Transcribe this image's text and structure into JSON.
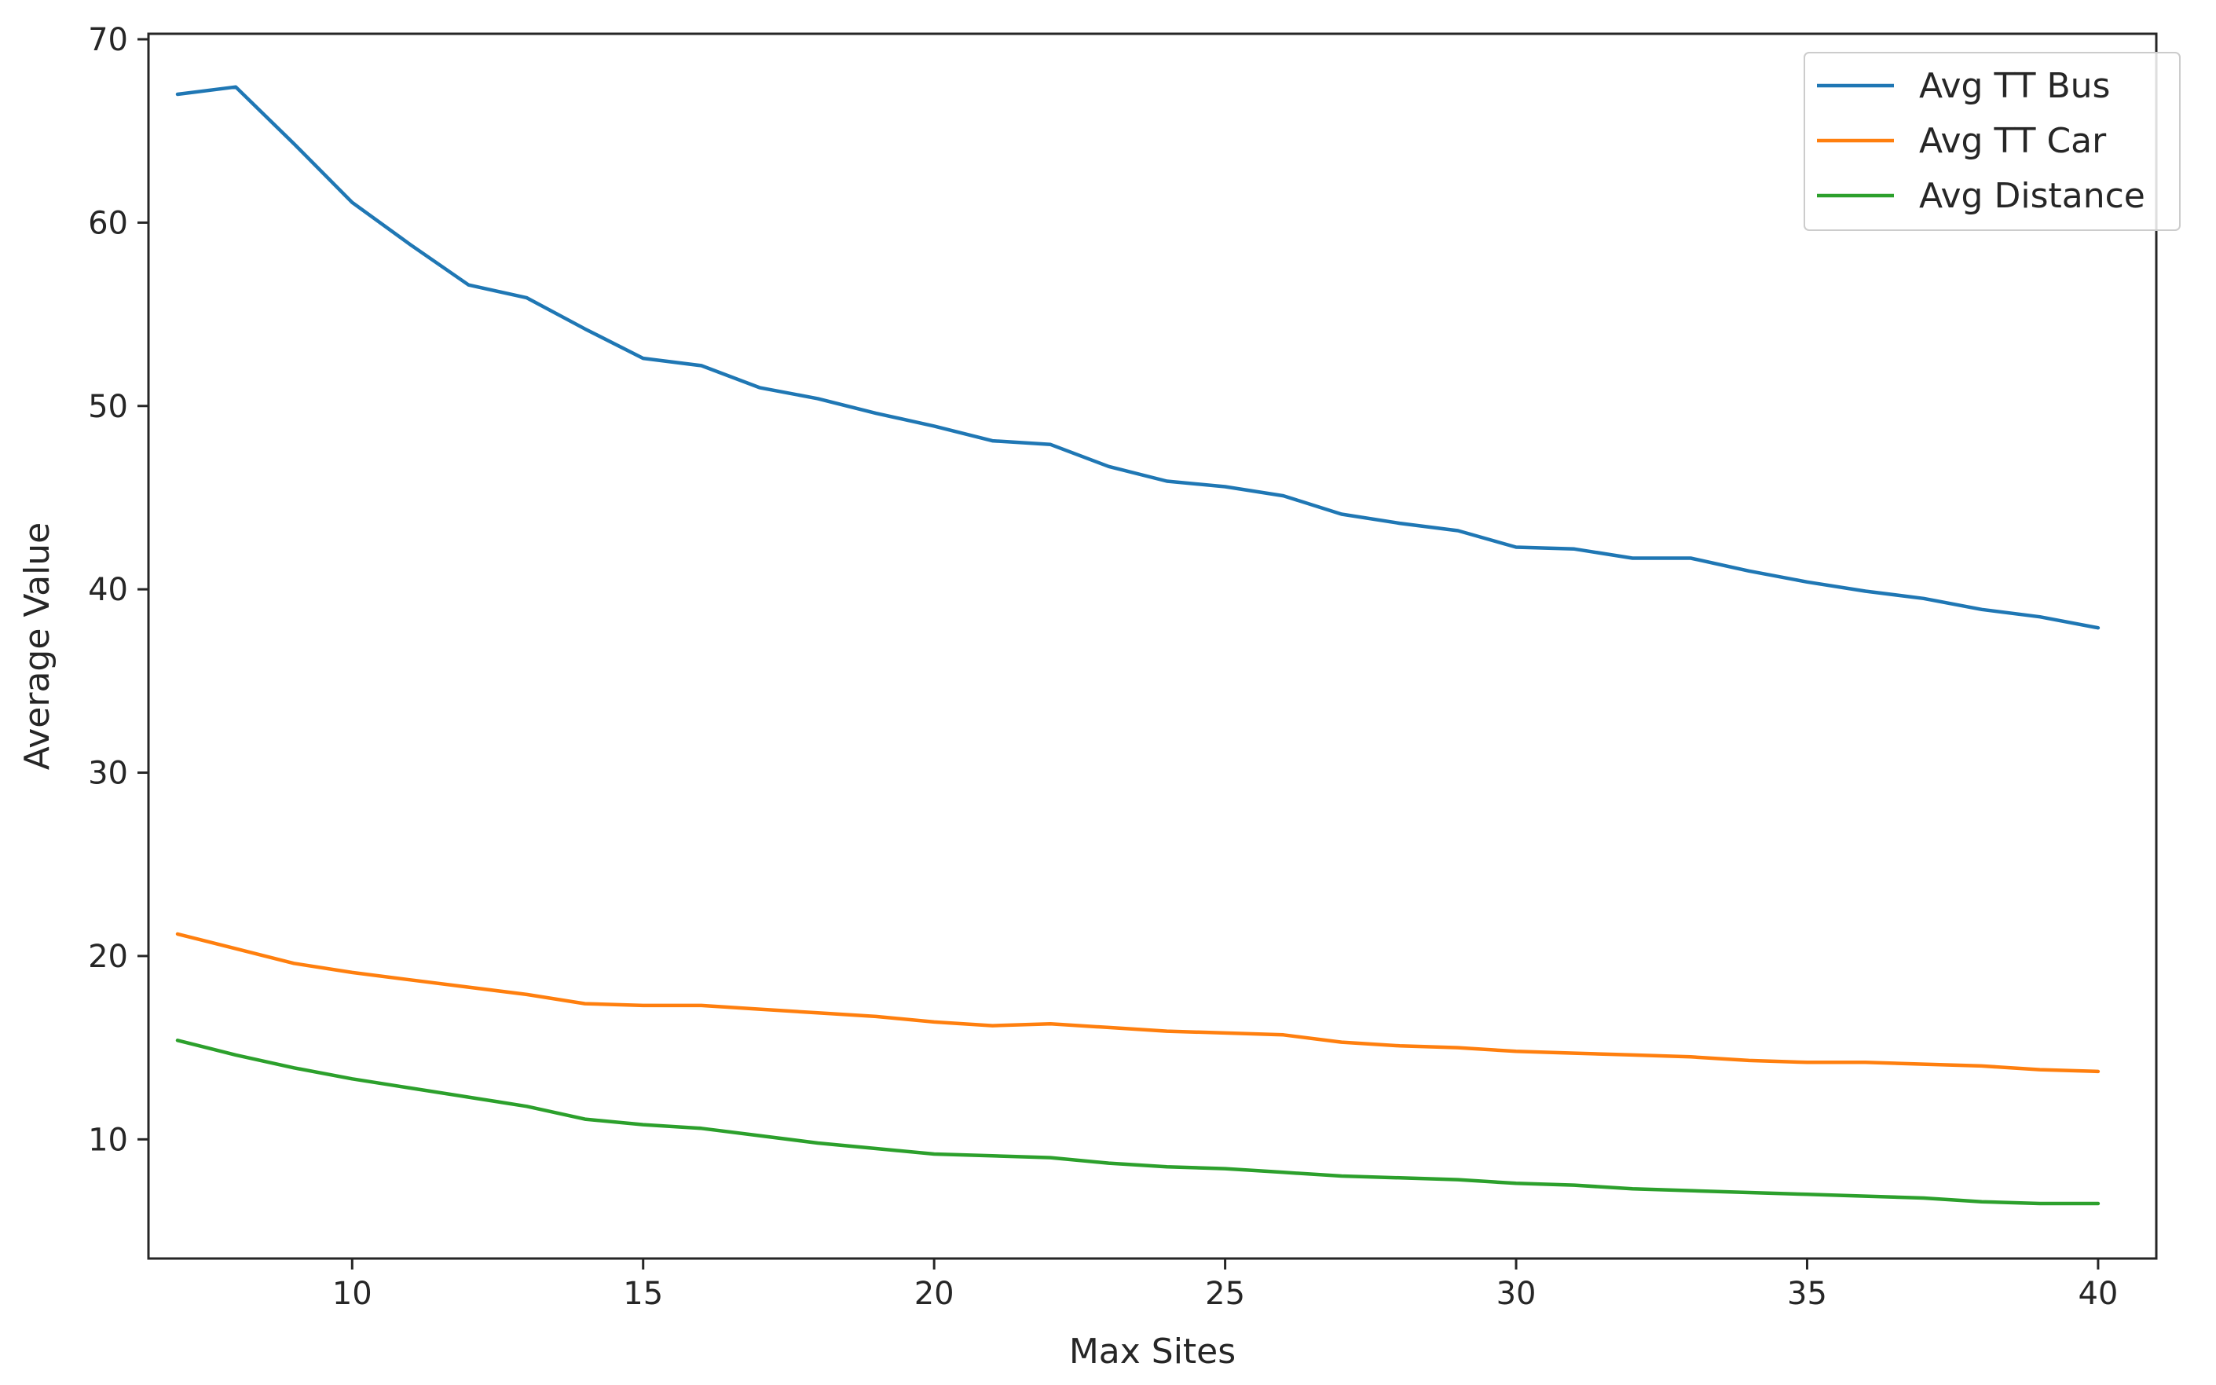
{
  "chart_data": {
    "type": "line",
    "title": "",
    "xlabel": "Max Sites",
    "ylabel": "Average Value",
    "xlim": [
      6.5,
      41
    ],
    "ylim": [
      3.5,
      70.3
    ],
    "xticks": [
      10,
      15,
      20,
      25,
      30,
      35,
      40
    ],
    "yticks": [
      10,
      20,
      30,
      40,
      50,
      60,
      70
    ],
    "grid": false,
    "legend": "top-right",
    "x": [
      7,
      8,
      9,
      10,
      11,
      12,
      13,
      14,
      15,
      16,
      17,
      18,
      19,
      20,
      21,
      22,
      23,
      24,
      25,
      26,
      27,
      28,
      29,
      30,
      31,
      32,
      33,
      34,
      35,
      36,
      37,
      38,
      39,
      40
    ],
    "series": [
      {
        "name": "Avg TT Bus",
        "color": "#1f77b4",
        "values": [
          67.0,
          67.4,
          64.3,
          61.1,
          58.8,
          56.6,
          55.9,
          54.2,
          52.6,
          52.2,
          51.0,
          50.4,
          49.6,
          48.9,
          48.1,
          47.9,
          46.7,
          45.9,
          45.6,
          45.1,
          44.1,
          43.6,
          43.2,
          42.3,
          42.2,
          41.7,
          41.7,
          41.0,
          40.4,
          39.9,
          39.5,
          38.9,
          38.5,
          37.9
        ]
      },
      {
        "name": "Avg TT Car",
        "color": "#ff7f0e",
        "values": [
          21.2,
          20.4,
          19.6,
          19.1,
          18.7,
          18.3,
          17.9,
          17.4,
          17.3,
          17.3,
          17.1,
          16.9,
          16.7,
          16.4,
          16.2,
          16.3,
          16.1,
          15.9,
          15.8,
          15.7,
          15.3,
          15.1,
          15.0,
          14.8,
          14.7,
          14.6,
          14.5,
          14.3,
          14.2,
          14.2,
          14.1,
          14.0,
          13.8,
          13.7
        ]
      },
      {
        "name": "Avg Distance",
        "color": "#2ca02c",
        "values": [
          15.4,
          14.6,
          13.9,
          13.3,
          12.8,
          12.3,
          11.8,
          11.1,
          10.8,
          10.6,
          10.2,
          9.8,
          9.5,
          9.2,
          9.1,
          9.0,
          8.7,
          8.5,
          8.4,
          8.2,
          8.0,
          7.9,
          7.8,
          7.6,
          7.5,
          7.3,
          7.2,
          7.1,
          7.0,
          6.9,
          6.8,
          6.6,
          6.5,
          6.5
        ]
      }
    ]
  }
}
